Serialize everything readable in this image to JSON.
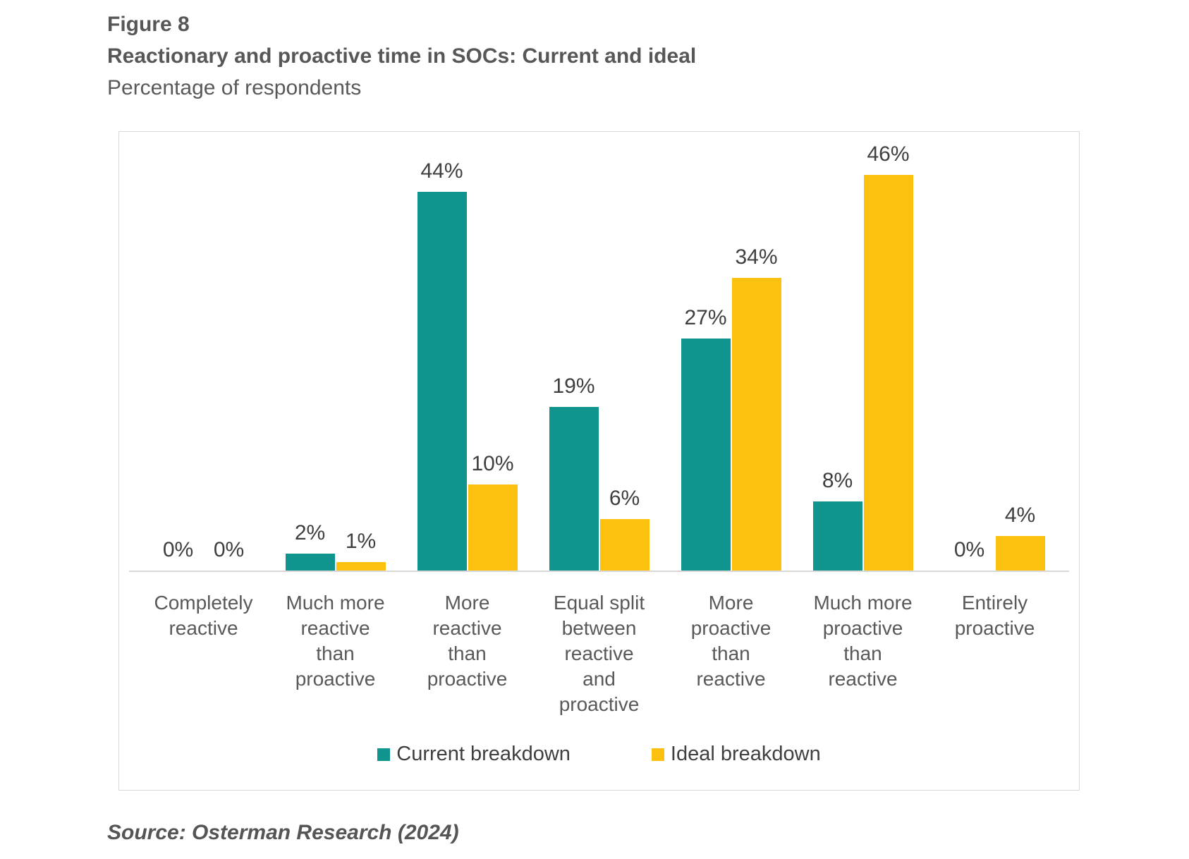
{
  "header": {
    "figure_label": "Figure 8",
    "title": "Reactionary and proactive time in SOCs: Current and ideal",
    "subtitle": "Percentage of respondents"
  },
  "source": "Source: Osterman Research (2024)",
  "colors": {
    "current": "#0f948e",
    "ideal": "#fcc10e",
    "box_border": "#d9d9d9",
    "axis_line": "#d9d9d9",
    "value_text": "#3f3f3f",
    "axis_text": "#595959"
  },
  "legend": [
    {
      "label": "Current breakdown",
      "color_key": "current"
    },
    {
      "label": "Ideal breakdown",
      "color_key": "ideal"
    }
  ],
  "chart_data": {
    "type": "bar",
    "title": "Reactionary and proactive time in SOCs: Current and ideal",
    "subtitle": "Percentage of respondents",
    "categories": [
      "Completely reactive",
      "Much more reactive than proactive",
      "More reactive than proactive",
      "Equal split between reactive and proactive",
      "More proactive than reactive",
      "Much more proactive than reactive",
      "Entirely proactive"
    ],
    "category_lines": [
      [
        "Completely",
        "reactive"
      ],
      [
        "Much more",
        "reactive",
        "than",
        "proactive"
      ],
      [
        "More",
        "reactive",
        "than",
        "proactive"
      ],
      [
        "Equal split",
        "between",
        "reactive",
        "and",
        "proactive"
      ],
      [
        "More",
        "proactive",
        "than",
        "reactive"
      ],
      [
        "Much more",
        "proactive",
        "than",
        "reactive"
      ],
      [
        "Entirely",
        "proactive"
      ]
    ],
    "series": [
      {
        "name": "Current breakdown",
        "color_key": "current",
        "values": [
          0,
          2,
          44,
          19,
          27,
          8,
          0
        ]
      },
      {
        "name": "Ideal breakdown",
        "color_key": "ideal",
        "values": [
          0,
          1,
          10,
          6,
          34,
          46,
          4
        ]
      }
    ],
    "value_suffix": "%",
    "data_labels": true,
    "xlabel": "",
    "ylabel": "",
    "ylim": [
      0,
      50
    ],
    "grid": false,
    "legend_position": "bottom"
  }
}
